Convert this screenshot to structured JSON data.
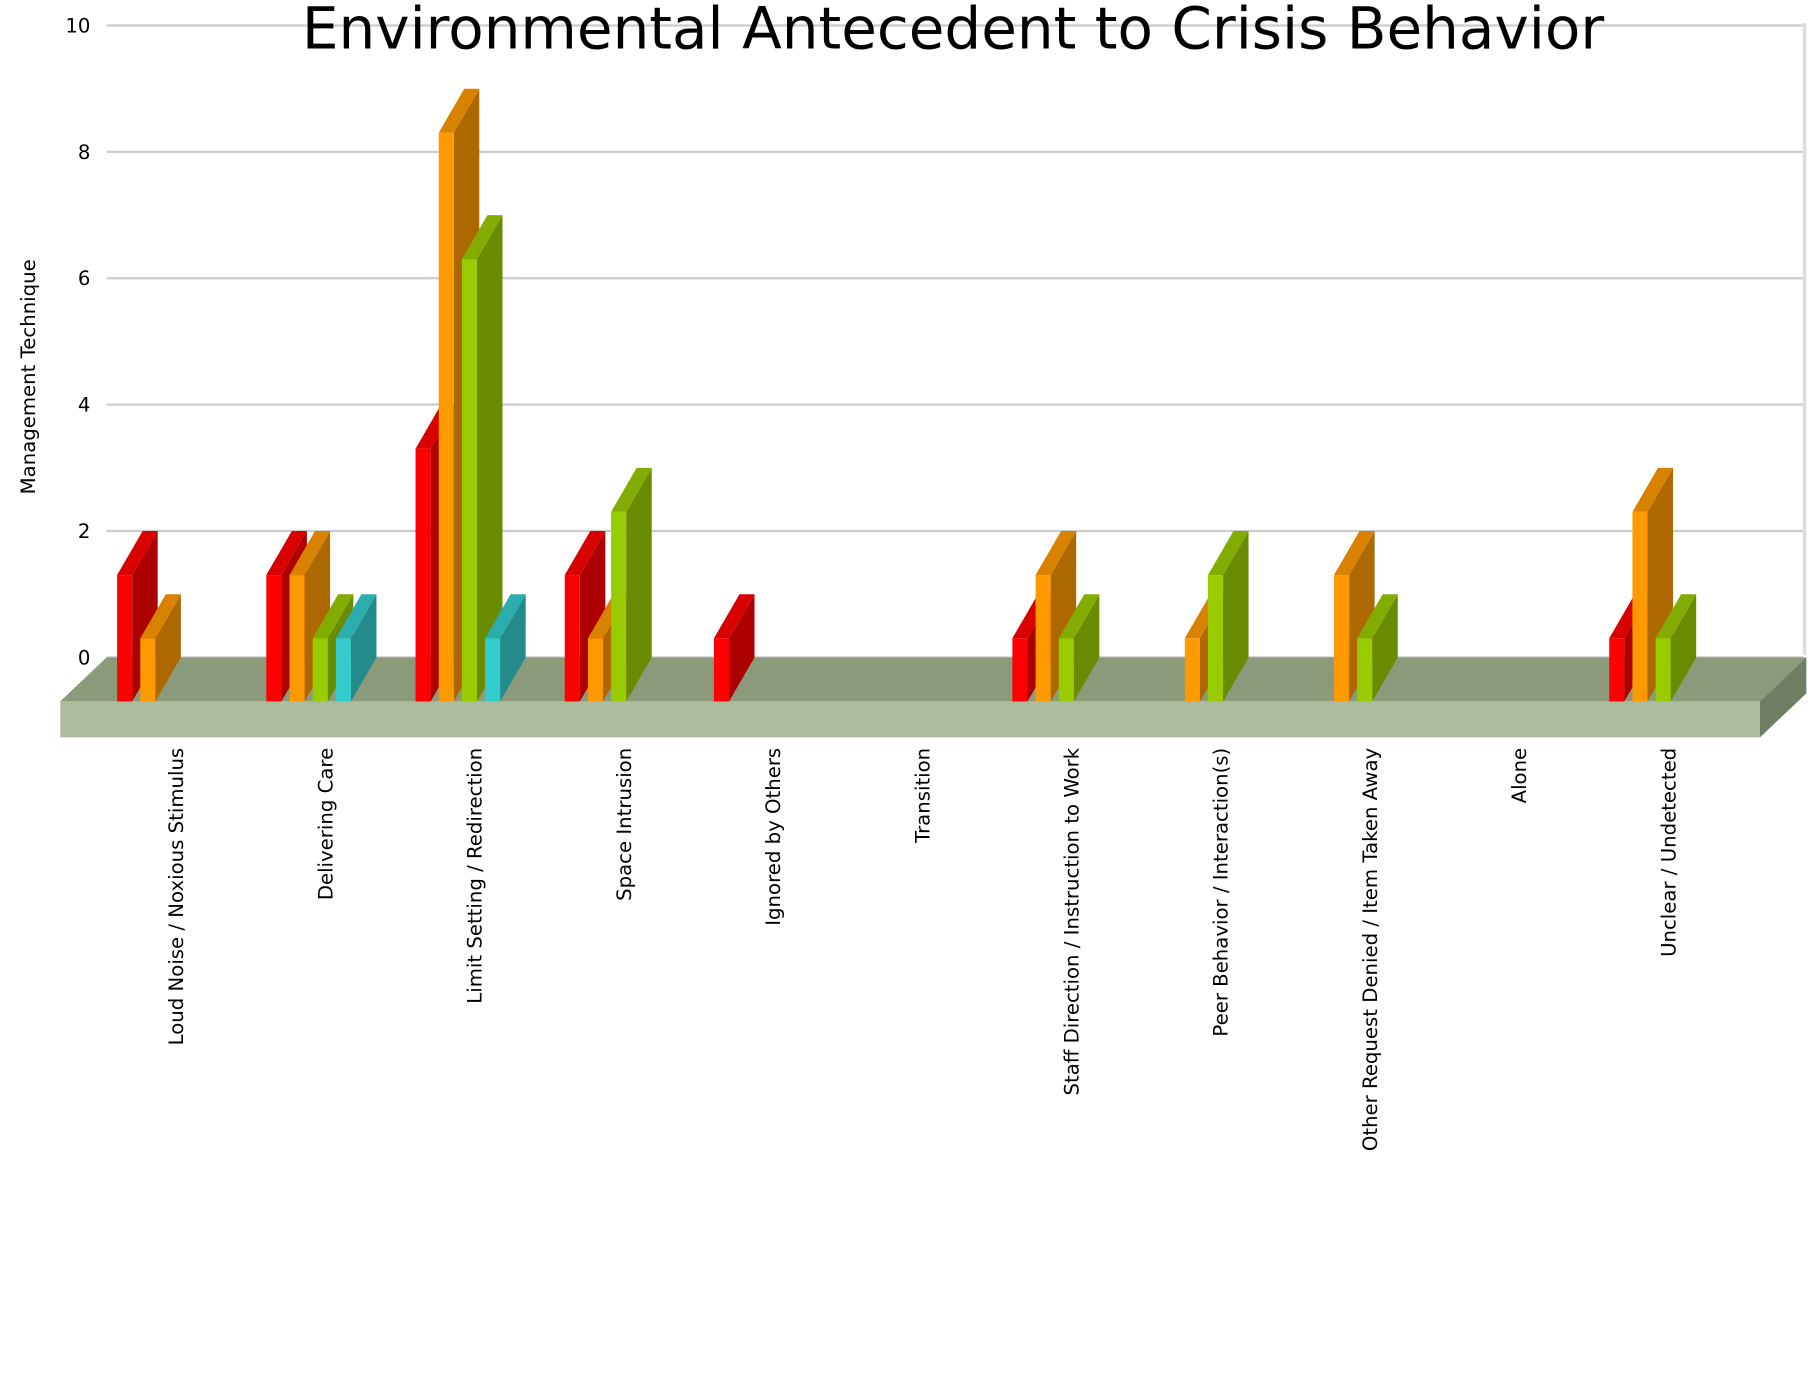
{
  "chart_data": {
    "type": "bar3d",
    "title": "Environmental Antecedent to Crisis Behavior",
    "ylabel": "Management Technique",
    "categories": [
      "Loud Noise / Noxious Stimulus",
      "Delivering Care",
      "Limit Setting / Redirection",
      "Space Intrusion",
      "Ignored by Others",
      "Transition",
      "Staff Direction / Instruction to Work",
      "Peer Behavior / Interaction(s)",
      "Other Request Denied / Item Taken Away",
      "Alone",
      "Unclear / Undetected"
    ],
    "series": [
      {
        "color": "#ff0000",
        "values": [
          2,
          2,
          4,
          2,
          1,
          0,
          1,
          0,
          0,
          0,
          1
        ]
      },
      {
        "color": "#ff9900",
        "values": [
          1,
          2,
          9,
          1,
          0,
          0,
          2,
          1,
          2,
          0,
          3
        ]
      },
      {
        "color": "#99cc00",
        "values": [
          0,
          1,
          7,
          3,
          0,
          0,
          1,
          2,
          1,
          0,
          1
        ]
      },
      {
        "color": "#33cccc",
        "values": [
          0,
          1,
          1,
          0,
          0,
          0,
          0,
          0,
          0,
          0,
          0
        ]
      }
    ],
    "ylim": [
      0,
      10
    ],
    "yticks": [
      0,
      2,
      4,
      6,
      8,
      10
    ],
    "grid": true
  }
}
